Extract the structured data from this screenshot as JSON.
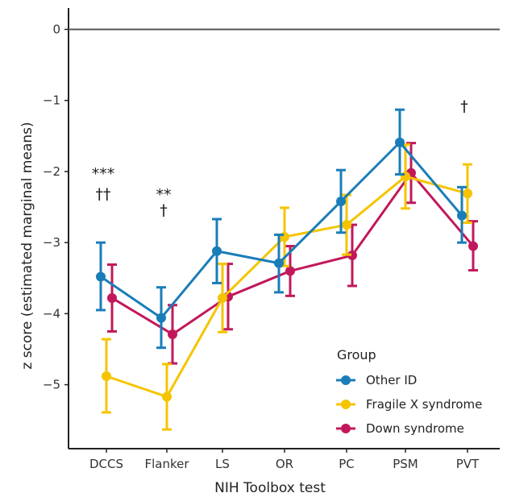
{
  "chart_data": {
    "type": "line",
    "xlabel": "NIH Toolbox test",
    "ylabel": "z score (estimated marginal means)",
    "ylim": [
      -5.9,
      0.3
    ],
    "yticks": [
      0,
      -1,
      -2,
      -3,
      -4,
      -5
    ],
    "ytick_labels": [
      "0",
      "−1",
      "−2",
      "−3",
      "−4",
      "−5"
    ],
    "reference_line": 0,
    "categories": [
      "DCCS",
      "Flanker",
      "LS",
      "OR",
      "PC",
      "PSM",
      "PVT"
    ],
    "series": [
      {
        "name": "Other ID",
        "color": "#1a7db8",
        "values": [
          -3.48,
          -4.06,
          -3.12,
          -3.29,
          -2.42,
          -1.59,
          -2.62
        ],
        "lower": [
          -3.95,
          -4.48,
          -3.57,
          -3.7,
          -2.86,
          -2.04,
          -3.0
        ],
        "upper": [
          -3.0,
          -3.63,
          -2.67,
          -2.89,
          -1.98,
          -1.13,
          -2.22
        ]
      },
      {
        "name": "Fragile X syndrome",
        "color": "#f5c400",
        "values": [
          -4.88,
          -5.17,
          -3.78,
          -2.92,
          -2.75,
          -2.07,
          -2.31
        ],
        "lower": [
          -5.39,
          -5.63,
          -4.26,
          -3.33,
          -3.17,
          -2.52,
          -2.72
        ],
        "upper": [
          -4.36,
          -4.71,
          -3.3,
          -2.51,
          -2.33,
          -1.62,
          -1.9
        ]
      },
      {
        "name": "Down syndrome",
        "color": "#c2185b",
        "values": [
          -3.78,
          -4.29,
          -3.76,
          -3.4,
          -3.18,
          -2.02,
          -3.05
        ],
        "lower": [
          -4.25,
          -4.7,
          -4.22,
          -3.75,
          -3.61,
          -2.44,
          -3.39
        ],
        "upper": [
          -3.31,
          -3.88,
          -3.3,
          -3.05,
          -2.75,
          -1.6,
          -2.7
        ]
      }
    ],
    "annotations": [
      {
        "category": "DCCS",
        "lines": [
          "***",
          "††"
        ]
      },
      {
        "category": "Flanker",
        "lines": [
          "**",
          "†"
        ]
      },
      {
        "category": "PVT",
        "lines": [
          "†"
        ]
      }
    ],
    "legend": {
      "title": "Group",
      "position": "bottom-right"
    },
    "grid": false
  }
}
